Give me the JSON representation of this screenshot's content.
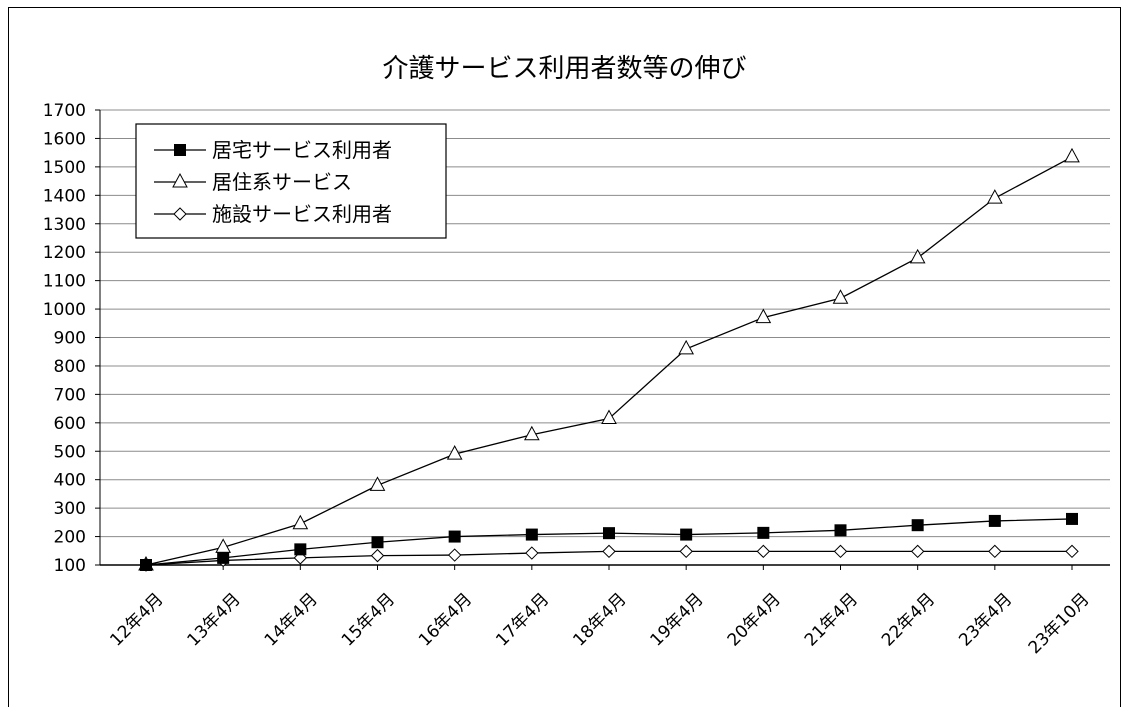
{
  "chart_data": {
    "type": "line",
    "title": "介護サービス利用者数等の伸び",
    "xlabel": "",
    "ylabel": "",
    "ylim": [
      100,
      1700
    ],
    "ytick_step": 100,
    "grid": true,
    "legend_position": "top-left",
    "categories": [
      "12年4月",
      "13年4月",
      "14年4月",
      "15年4月",
      "16年4月",
      "17年4月",
      "18年4月",
      "19年4月",
      "20年4月",
      "21年4月",
      "22年4月",
      "23年4月",
      "23年10月"
    ],
    "series": [
      {
        "name": "居宅サービス利用者",
        "marker": "filled-square",
        "values": [
          100,
          125,
          155,
          180,
          200,
          207,
          212,
          207,
          213,
          222,
          240,
          255,
          262
        ]
      },
      {
        "name": "居住系サービス",
        "marker": "open-triangle",
        "values": [
          100,
          162,
          245,
          380,
          490,
          558,
          615,
          860,
          970,
          1038,
          1180,
          1390,
          1535
        ]
      },
      {
        "name": "施設サービス利用者",
        "marker": "open-diamond",
        "values": [
          100,
          116,
          125,
          133,
          135,
          142,
          148,
          148,
          148,
          148,
          148,
          148,
          148
        ]
      }
    ]
  }
}
